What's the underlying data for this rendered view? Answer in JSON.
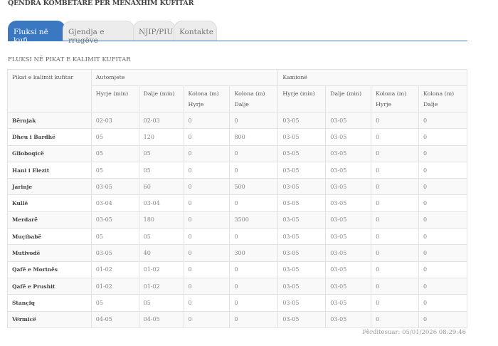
{
  "title": "QENDRA KOMBËTARE PËR MENAXHIM KUFITAR",
  "tabs": [
    {
      "label": "Fluksi në kufi",
      "active": true
    },
    {
      "label": "Gjendja e rrugëve"
    },
    {
      "label": "NJIP/PIU"
    },
    {
      "label": "Kontakte"
    }
  ],
  "section_title": "FLUKSI NË PIKAT E KALIMIT KUFITAR",
  "table": {
    "first_header": "Pikat e kalimit kufitar",
    "groups": [
      "Automjete",
      "Kamionë"
    ],
    "columns": [
      "Hyrje (min)",
      "Dalje (min)",
      "Kolona (m) Hyrje",
      "Kolona (m) Dalje",
      "Hyrje (min)",
      "Dalje (min)",
      "Kolona (m) Hyrje",
      "Kolona (m) Dalje"
    ],
    "rows": [
      [
        "Bërnjak",
        "02-03",
        "02-03",
        "0",
        "0",
        "03-05",
        "03-05",
        "0",
        "0"
      ],
      [
        "Dheu i Bardhë",
        "05",
        "120",
        "0",
        "800",
        "03-05",
        "03-05",
        "0",
        "0"
      ],
      [
        "Glloboqicë",
        "05",
        "05",
        "0",
        "0",
        "03-05",
        "03-05",
        "0",
        "0"
      ],
      [
        "Hani i Elezit",
        "05",
        "05",
        "0",
        "0",
        "03-05",
        "03-05",
        "0",
        "0"
      ],
      [
        "Jarinje",
        "03-05",
        "60",
        "0",
        "500",
        "03-05",
        "03-05",
        "0",
        "0"
      ],
      [
        "Kullë",
        "03-04",
        "03-04",
        "0",
        "0",
        "03-05",
        "03-05",
        "0",
        "0"
      ],
      [
        "Merdarë",
        "03-05",
        "180",
        "0",
        "3500",
        "03-05",
        "03-05",
        "0",
        "0"
      ],
      [
        "Muçibabë",
        "05",
        "05",
        "0",
        "0",
        "03-05",
        "03-05",
        "0",
        "0"
      ],
      [
        "Mutivodë",
        "03-05",
        "40",
        "0",
        "300",
        "03-05",
        "03-05",
        "0",
        "0"
      ],
      [
        "Qafë e Morinës",
        "01-02",
        "01-02",
        "0",
        "0",
        "03-05",
        "03-05",
        "0",
        "0"
      ],
      [
        "Qafë e Prushit",
        "01-02",
        "01-02",
        "0",
        "0",
        "03-05",
        "03-05",
        "0",
        "0"
      ],
      [
        "Stançiq",
        "05",
        "05",
        "0",
        "0",
        "03-05",
        "03-05",
        "0",
        "0"
      ],
      [
        "Vërmicë",
        "04-05",
        "04-05",
        "0",
        "0",
        "03-05",
        "03-05",
        "0",
        "0"
      ]
    ]
  },
  "updated": "Përditesuar: 05/01/2026 08:29:46",
  "colors": {
    "accent": "#3a78c2"
  }
}
